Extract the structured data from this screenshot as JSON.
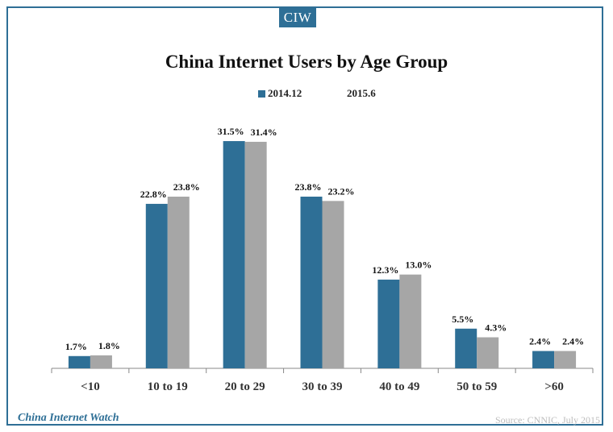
{
  "badge": "CIW",
  "footer": {
    "brand": "China Internet Watch",
    "source": "Source: CNNIC, July 2015"
  },
  "colors": {
    "series1": "#2e6f96",
    "series2": "#a6a6a6",
    "frame": "#2e6f96"
  },
  "chart_data": {
    "type": "bar",
    "title": "China Internet Users by Age Group",
    "xlabel": "",
    "ylabel": "",
    "ylim": [
      0,
      35
    ],
    "grid": false,
    "legend_position": "top",
    "categories": [
      "<10",
      "10 to 19",
      "20 to 29",
      "30 to 39",
      "40 to 49",
      "50 to 59",
      ">60"
    ],
    "series": [
      {
        "name": "2014.12",
        "values": [
          1.7,
          22.8,
          31.5,
          23.8,
          12.3,
          5.5,
          2.4
        ],
        "labels": [
          "1.7%",
          "22.8%",
          "31.5%",
          "23.8%",
          "12.3%",
          "5.5%",
          "2.4%"
        ]
      },
      {
        "name": "2015.6",
        "values": [
          1.8,
          23.8,
          31.4,
          23.2,
          13.0,
          4.3,
          2.4
        ],
        "labels": [
          "1.8%",
          "23.8%",
          "31.4%",
          "23.2%",
          "13.0%",
          "4.3%",
          "2.4%"
        ]
      }
    ]
  }
}
